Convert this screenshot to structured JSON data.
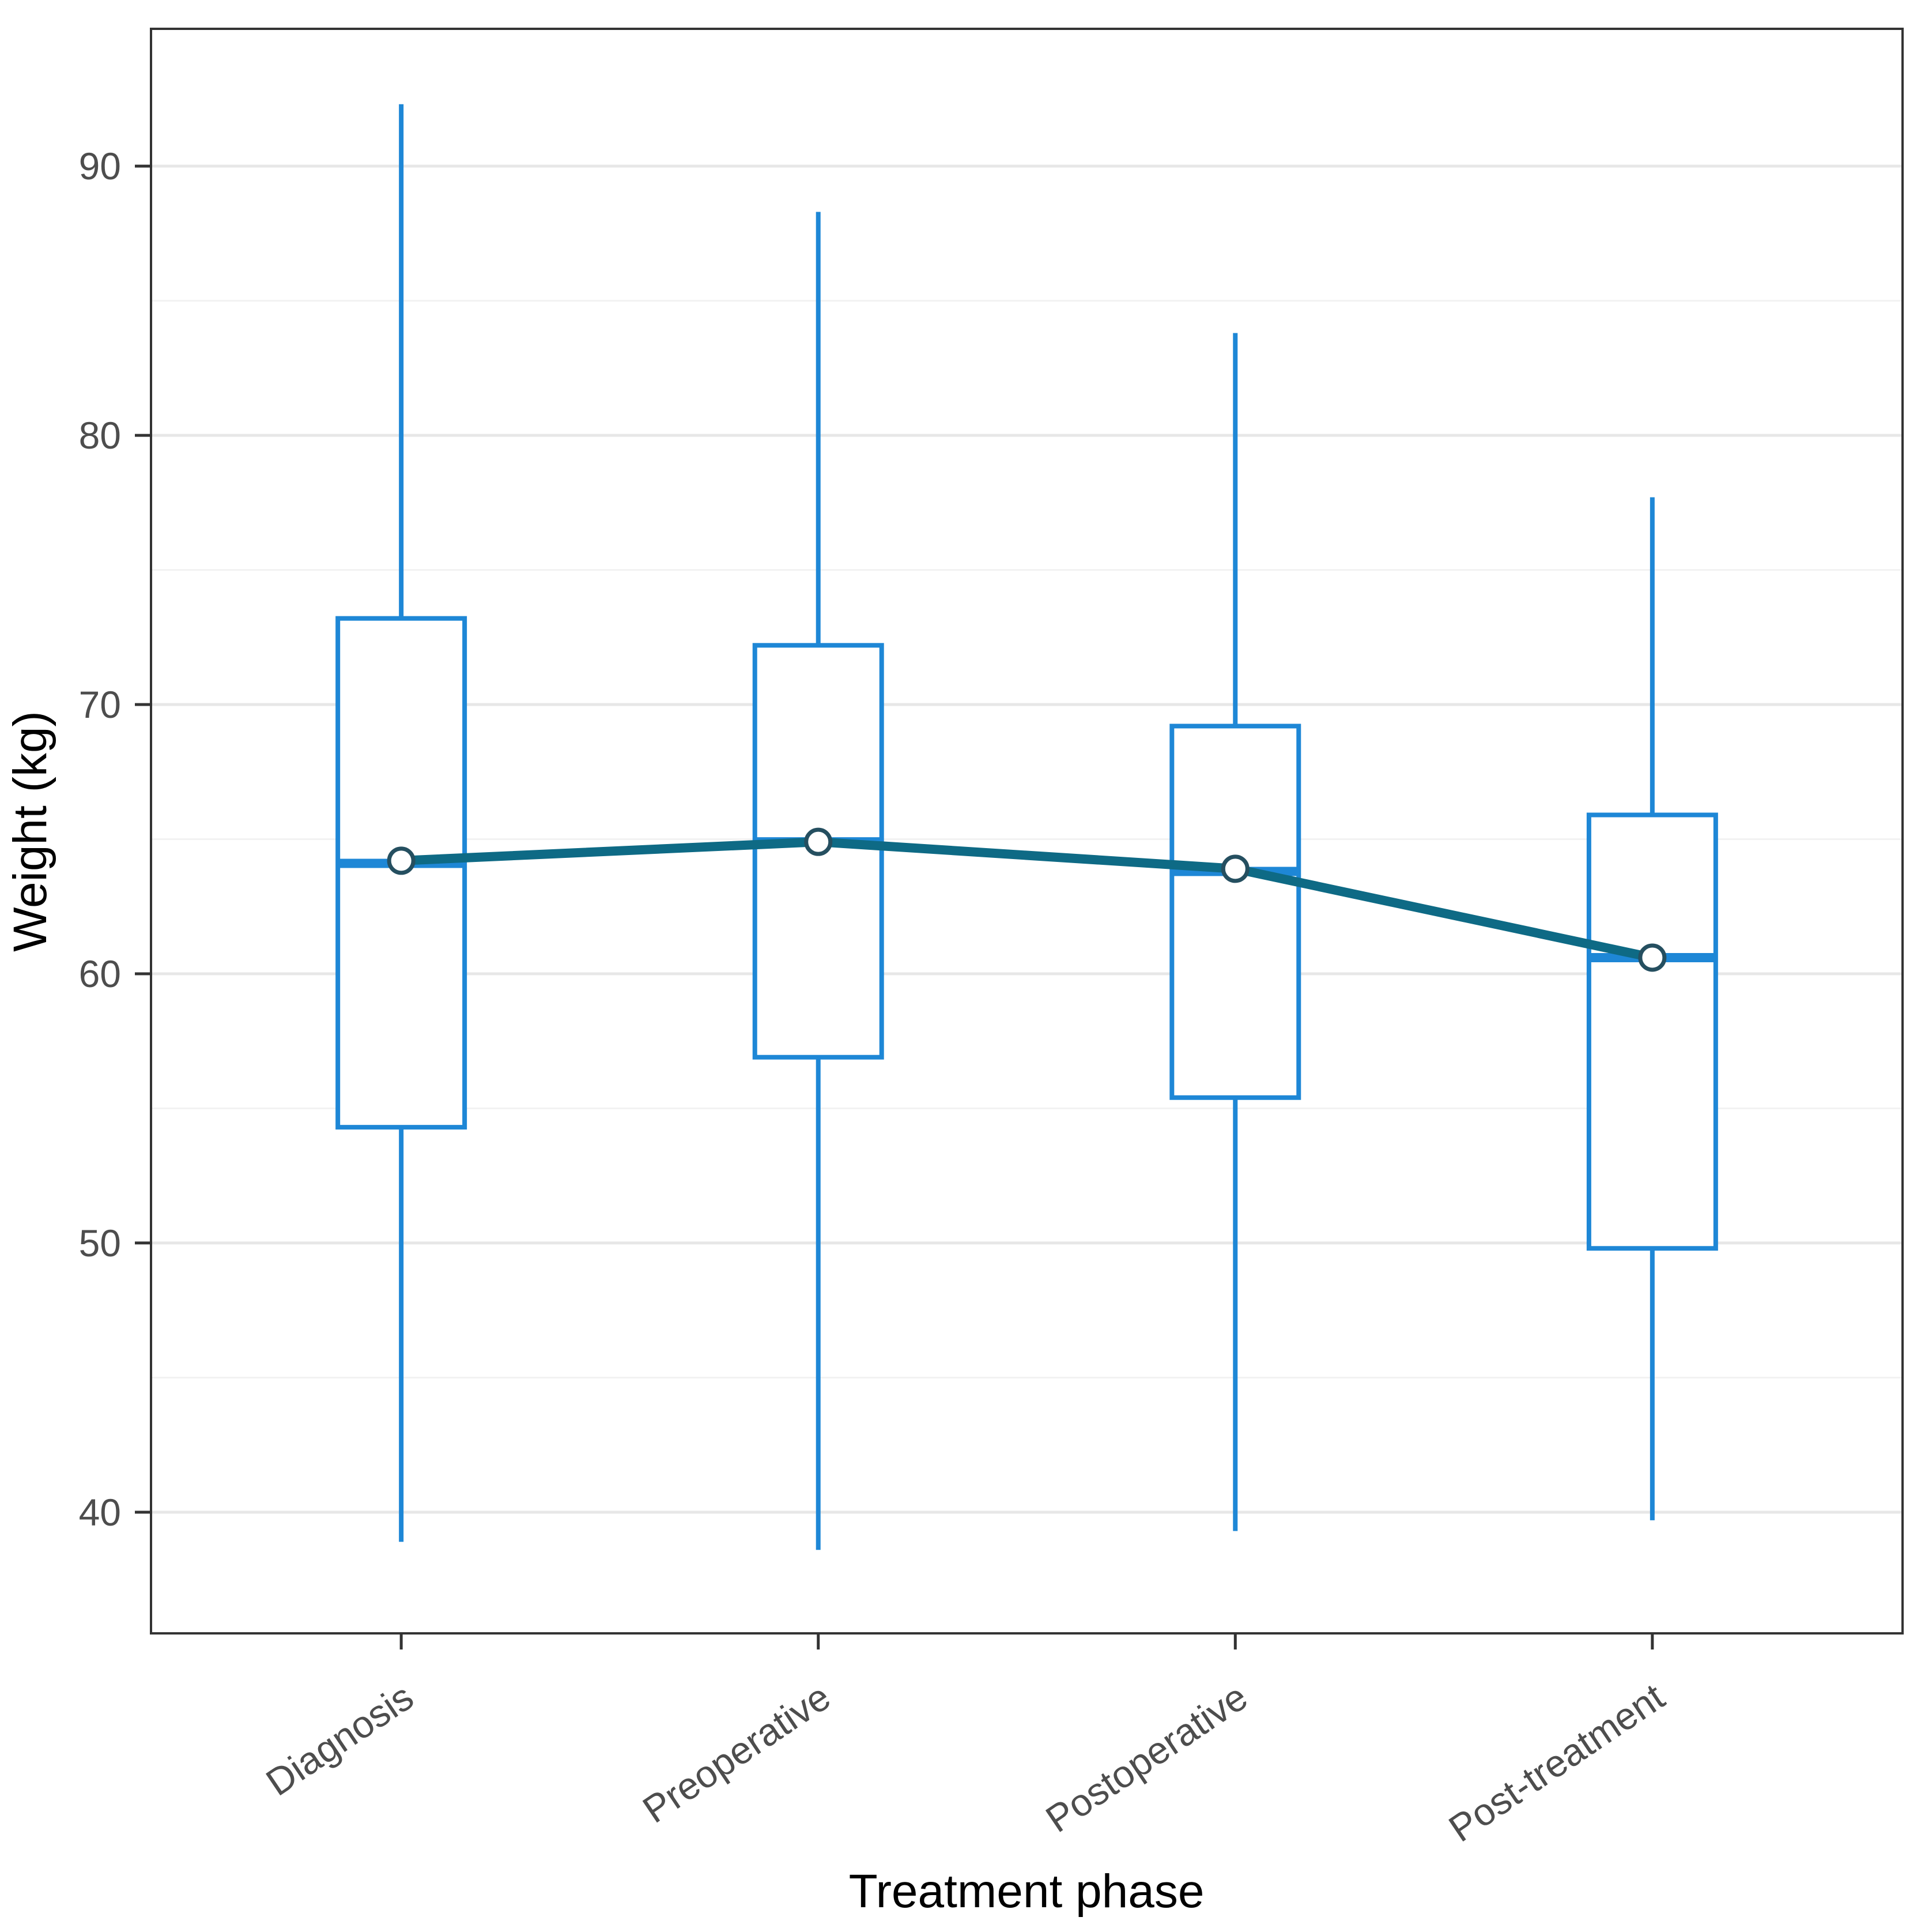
{
  "chart_data": {
    "type": "boxplot",
    "title": "",
    "xlabel": "Treatment phase",
    "ylabel": "Weight (kg)",
    "categories": [
      "Diagnosis",
      "Preoperative",
      "Postoperative",
      "Post-treatment"
    ],
    "y_ticks": [
      40,
      50,
      60,
      70,
      80,
      90
    ],
    "y_minor_ticks": [
      45,
      55,
      65,
      75,
      85
    ],
    "ylim": [
      35.5,
      95.1
    ],
    "grid": "on",
    "legend_position": "none",
    "x_label_angle_deg": 34,
    "boxes": [
      {
        "category": "Diagnosis",
        "whisker_low": 38.9,
        "q1": 54.3,
        "median": 64.1,
        "q3": 73.2,
        "whisker_high": 92.3,
        "mean": 64.2
      },
      {
        "category": "Preoperative",
        "whisker_low": 38.6,
        "q1": 56.9,
        "median": 64.9,
        "q3": 72.2,
        "whisker_high": 88.3,
        "mean": 64.9
      },
      {
        "category": "Postoperative",
        "whisker_low": 39.3,
        "q1": 55.4,
        "median": 63.8,
        "q3": 69.2,
        "whisker_high": 83.8,
        "mean": 63.9
      },
      {
        "category": "Post-treatment",
        "whisker_low": 39.7,
        "q1": 49.8,
        "median": 60.6,
        "q3": 65.9,
        "whisker_high": 77.7,
        "mean": 60.6
      }
    ],
    "mean_series": {
      "name": "mean-trend",
      "values": [
        64.2,
        64.9,
        63.9,
        60.6
      ]
    },
    "colors": {
      "box_stroke": "#1e87d6",
      "box_fill": "#ffffff",
      "median": "#1e87d6",
      "mean_line": "#0e6a85",
      "mean_point_stroke": "#254f60",
      "mean_point_fill": "#ffffff",
      "grid_major": "#e7e7e7",
      "grid_minor": "#f2f2f2",
      "panel_border": "#333333",
      "tick": "#333333",
      "axis_text": "#4d4d4d",
      "axis_title": "#000000",
      "background": "#ffffff"
    }
  }
}
